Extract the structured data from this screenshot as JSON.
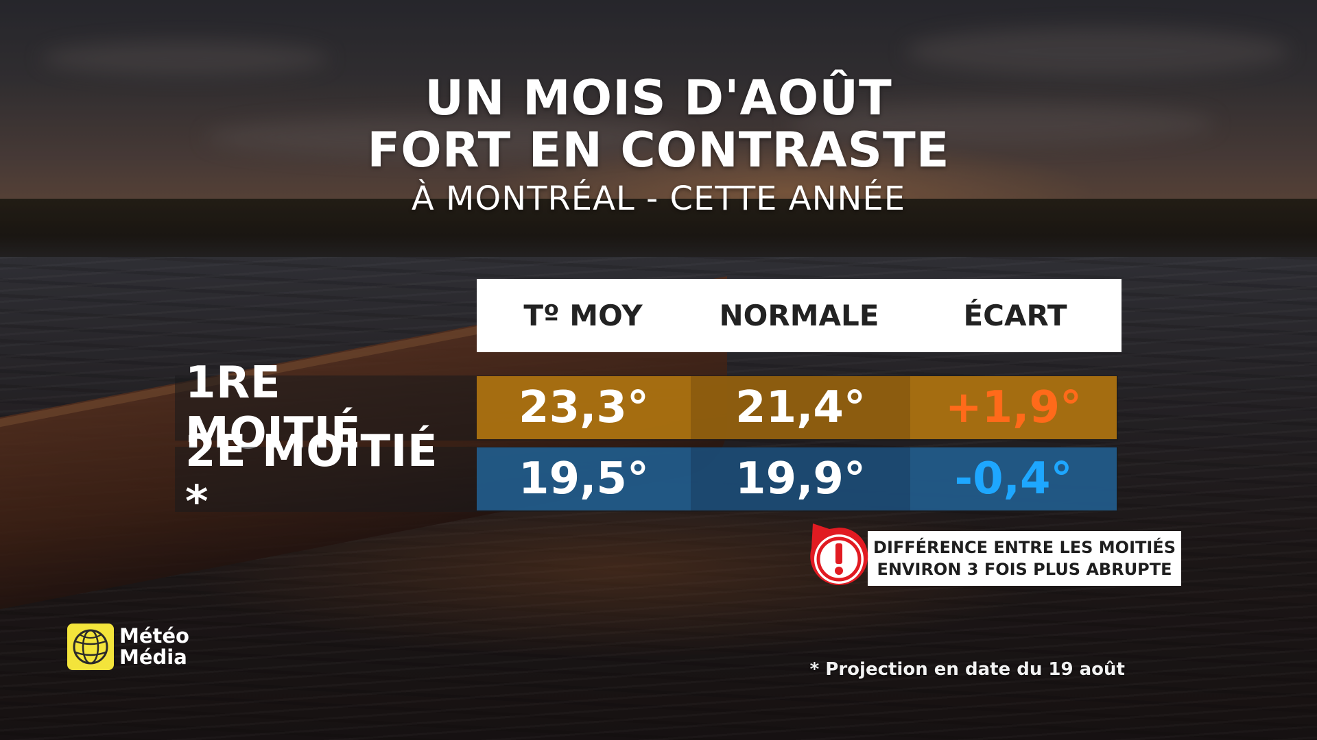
{
  "headline": {
    "line1": "UN MOIS D'AOÛT",
    "line2": "FORT EN CONTRASTE",
    "subtitle": "À MONTRÉAL - CETTE ANNÉE"
  },
  "table": {
    "columns": [
      "Tº MOY",
      "NORMALE",
      "ÉCART"
    ],
    "rows": [
      {
        "label": "1RE MOITIÉ",
        "values": [
          "23,3°",
          "21,4°",
          "+1,9°"
        ]
      },
      {
        "label": "2E MOITIÉ *",
        "values": [
          "19,5°",
          "19,9°",
          "-0,4°"
        ]
      }
    ],
    "colors": {
      "row1_fill": "#b07410",
      "row2_fill": "#225c8c",
      "positive_deviation": "#ff6a1a",
      "negative_deviation": "#1ea7ff",
      "header_fill": "#ffffff"
    }
  },
  "callout": {
    "icon": "exclamation-icon",
    "line1": "DIFFÉRENCE ENTRE LES MOITIÉS",
    "line2": "ENVIRON 3 FOIS PLUS ABRUPTE",
    "accent_color": "#e11b22"
  },
  "footnote": "* Projection en date du 19 août",
  "logo": {
    "line1": "Météo",
    "line2": "Média",
    "icon": "globe-icon",
    "brand_color": "#f3e43b"
  }
}
